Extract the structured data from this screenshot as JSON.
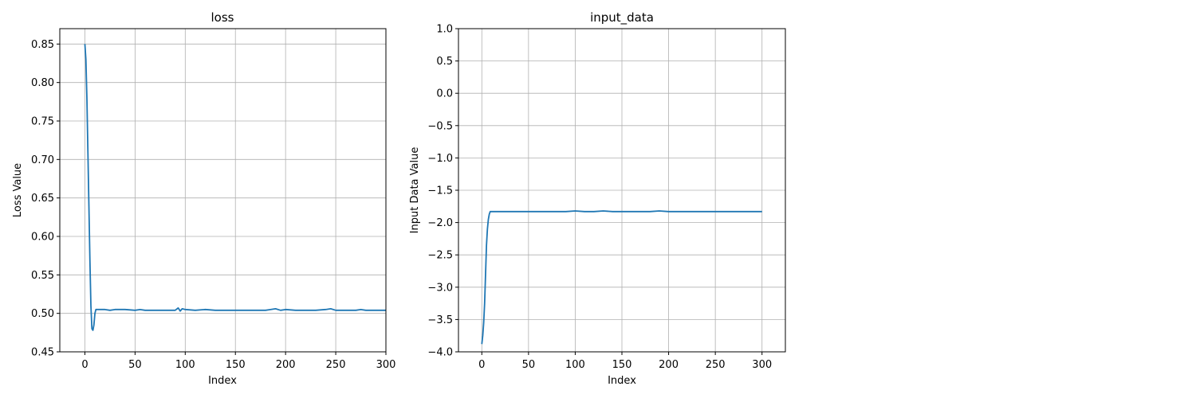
{
  "chart_data": [
    {
      "type": "line",
      "title": "loss",
      "xlabel": "Index",
      "ylabel": "Loss Value",
      "xlim": [
        -25,
        300
      ],
      "ylim": [
        0.45,
        0.87
      ],
      "xticks": [
        0,
        50,
        100,
        150,
        200,
        250,
        300
      ],
      "yticks": [
        0.45,
        0.5,
        0.55,
        0.6,
        0.65,
        0.7,
        0.75,
        0.8,
        0.85
      ],
      "grid": true,
      "line_color": "#1f77b4",
      "series": [
        {
          "x": [
            0,
            1,
            2,
            3,
            4,
            5,
            6,
            7,
            8,
            9,
            10,
            11,
            12,
            15,
            20,
            25,
            30,
            40,
            50,
            55,
            60,
            70,
            80,
            90,
            93,
            95,
            97,
            100,
            110,
            120,
            130,
            140,
            150,
            160,
            170,
            180,
            185,
            190,
            195,
            200,
            210,
            220,
            230,
            240,
            245,
            250,
            260,
            270,
            275,
            280,
            290,
            300
          ],
          "y": [
            0.85,
            0.83,
            0.78,
            0.71,
            0.64,
            0.57,
            0.51,
            0.48,
            0.478,
            0.485,
            0.5,
            0.505,
            0.505,
            0.505,
            0.505,
            0.504,
            0.505,
            0.505,
            0.504,
            0.505,
            0.504,
            0.504,
            0.504,
            0.504,
            0.507,
            0.503,
            0.506,
            0.505,
            0.504,
            0.505,
            0.504,
            0.504,
            0.504,
            0.504,
            0.504,
            0.504,
            0.505,
            0.506,
            0.504,
            0.505,
            0.504,
            0.504,
            0.504,
            0.505,
            0.506,
            0.504,
            0.504,
            0.504,
            0.505,
            0.504,
            0.504,
            0.504
          ]
        }
      ]
    },
    {
      "type": "line",
      "title": "input_data",
      "xlabel": "Index",
      "ylabel": "Input Data Value",
      "xlim": [
        -25,
        325
      ],
      "ylim": [
        -4.0,
        1.0
      ],
      "xticks": [
        0,
        50,
        100,
        150,
        200,
        250,
        300
      ],
      "yticks": [
        -4.0,
        -3.5,
        -3.0,
        -2.5,
        -2.0,
        -1.5,
        -1.0,
        -0.5,
        0.0,
        0.5,
        1.0
      ],
      "grid": true,
      "line_color": "#1f77b4",
      "series": [
        {
          "x": [
            0,
            1,
            2,
            3,
            4,
            5,
            6,
            7,
            8,
            9,
            10,
            11,
            12,
            15,
            20,
            30,
            40,
            50,
            60,
            70,
            80,
            90,
            100,
            110,
            120,
            130,
            140,
            150,
            160,
            170,
            180,
            190,
            200,
            210,
            220,
            230,
            240,
            250,
            260,
            270,
            280,
            290,
            300
          ],
          "y": [
            -3.88,
            -3.75,
            -3.55,
            -3.25,
            -2.8,
            -2.35,
            -2.1,
            -1.95,
            -1.87,
            -1.83,
            -1.83,
            -1.83,
            -1.83,
            -1.83,
            -1.83,
            -1.83,
            -1.83,
            -1.83,
            -1.83,
            -1.83,
            -1.83,
            -1.83,
            -1.82,
            -1.83,
            -1.83,
            -1.82,
            -1.83,
            -1.83,
            -1.83,
            -1.83,
            -1.83,
            -1.82,
            -1.83,
            -1.83,
            -1.83,
            -1.83,
            -1.83,
            -1.83,
            -1.83,
            -1.83,
            -1.83,
            -1.83,
            -1.83
          ]
        }
      ]
    }
  ]
}
